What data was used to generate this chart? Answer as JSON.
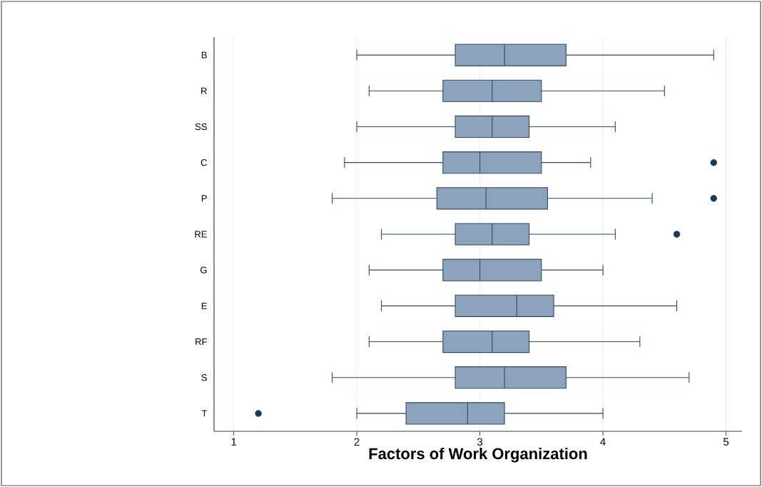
{
  "chart_data": {
    "type": "box",
    "orientation": "horizontal",
    "xlabel": "Factors of Work Organization",
    "categories": [
      "B",
      "R",
      "SS",
      "C",
      "P",
      "RE",
      "G",
      "E",
      "RF",
      "S",
      "T"
    ],
    "series": [
      {
        "color": "#8da3bd",
        "boxes": [
          {
            "low": 2.0,
            "q1": 2.8,
            "median": 3.2,
            "q3": 3.7,
            "high": 4.9
          },
          {
            "low": 2.1,
            "q1": 2.7,
            "median": 3.1,
            "q3": 3.5,
            "high": 4.5
          },
          {
            "low": 2.0,
            "q1": 2.8,
            "median": 3.1,
            "q3": 3.4,
            "high": 4.1
          },
          {
            "low": 1.9,
            "q1": 2.7,
            "median": 3.0,
            "q3": 3.5,
            "high": 3.9,
            "outliers": [
              4.9
            ]
          },
          {
            "low": 1.8,
            "q1": 2.65,
            "median": 3.05,
            "q3": 3.55,
            "high": 4.4,
            "outliers": [
              4.9
            ]
          },
          {
            "low": 2.2,
            "q1": 2.8,
            "median": 3.1,
            "q3": 3.4,
            "high": 4.1,
            "outliers": [
              4.6
            ]
          },
          {
            "low": 2.1,
            "q1": 2.7,
            "median": 3.0,
            "q3": 3.5,
            "high": 4.0
          },
          {
            "low": 2.2,
            "q1": 2.8,
            "median": 3.3,
            "q3": 3.6,
            "high": 4.6
          },
          {
            "low": 2.1,
            "q1": 2.7,
            "median": 3.1,
            "q3": 3.4,
            "high": 4.3
          },
          {
            "low": 1.8,
            "q1": 2.8,
            "median": 3.2,
            "q3": 3.7,
            "high": 4.7
          },
          {
            "low": 2.0,
            "q1": 2.4,
            "median": 2.9,
            "q3": 3.2,
            "high": 4.0,
            "outliers": [
              1.2
            ]
          }
        ]
      }
    ],
    "xlim": [
      0.84,
      5.13
    ],
    "xticks": [
      1,
      2,
      3,
      4,
      5
    ],
    "grid": "x",
    "marker": "circle"
  }
}
